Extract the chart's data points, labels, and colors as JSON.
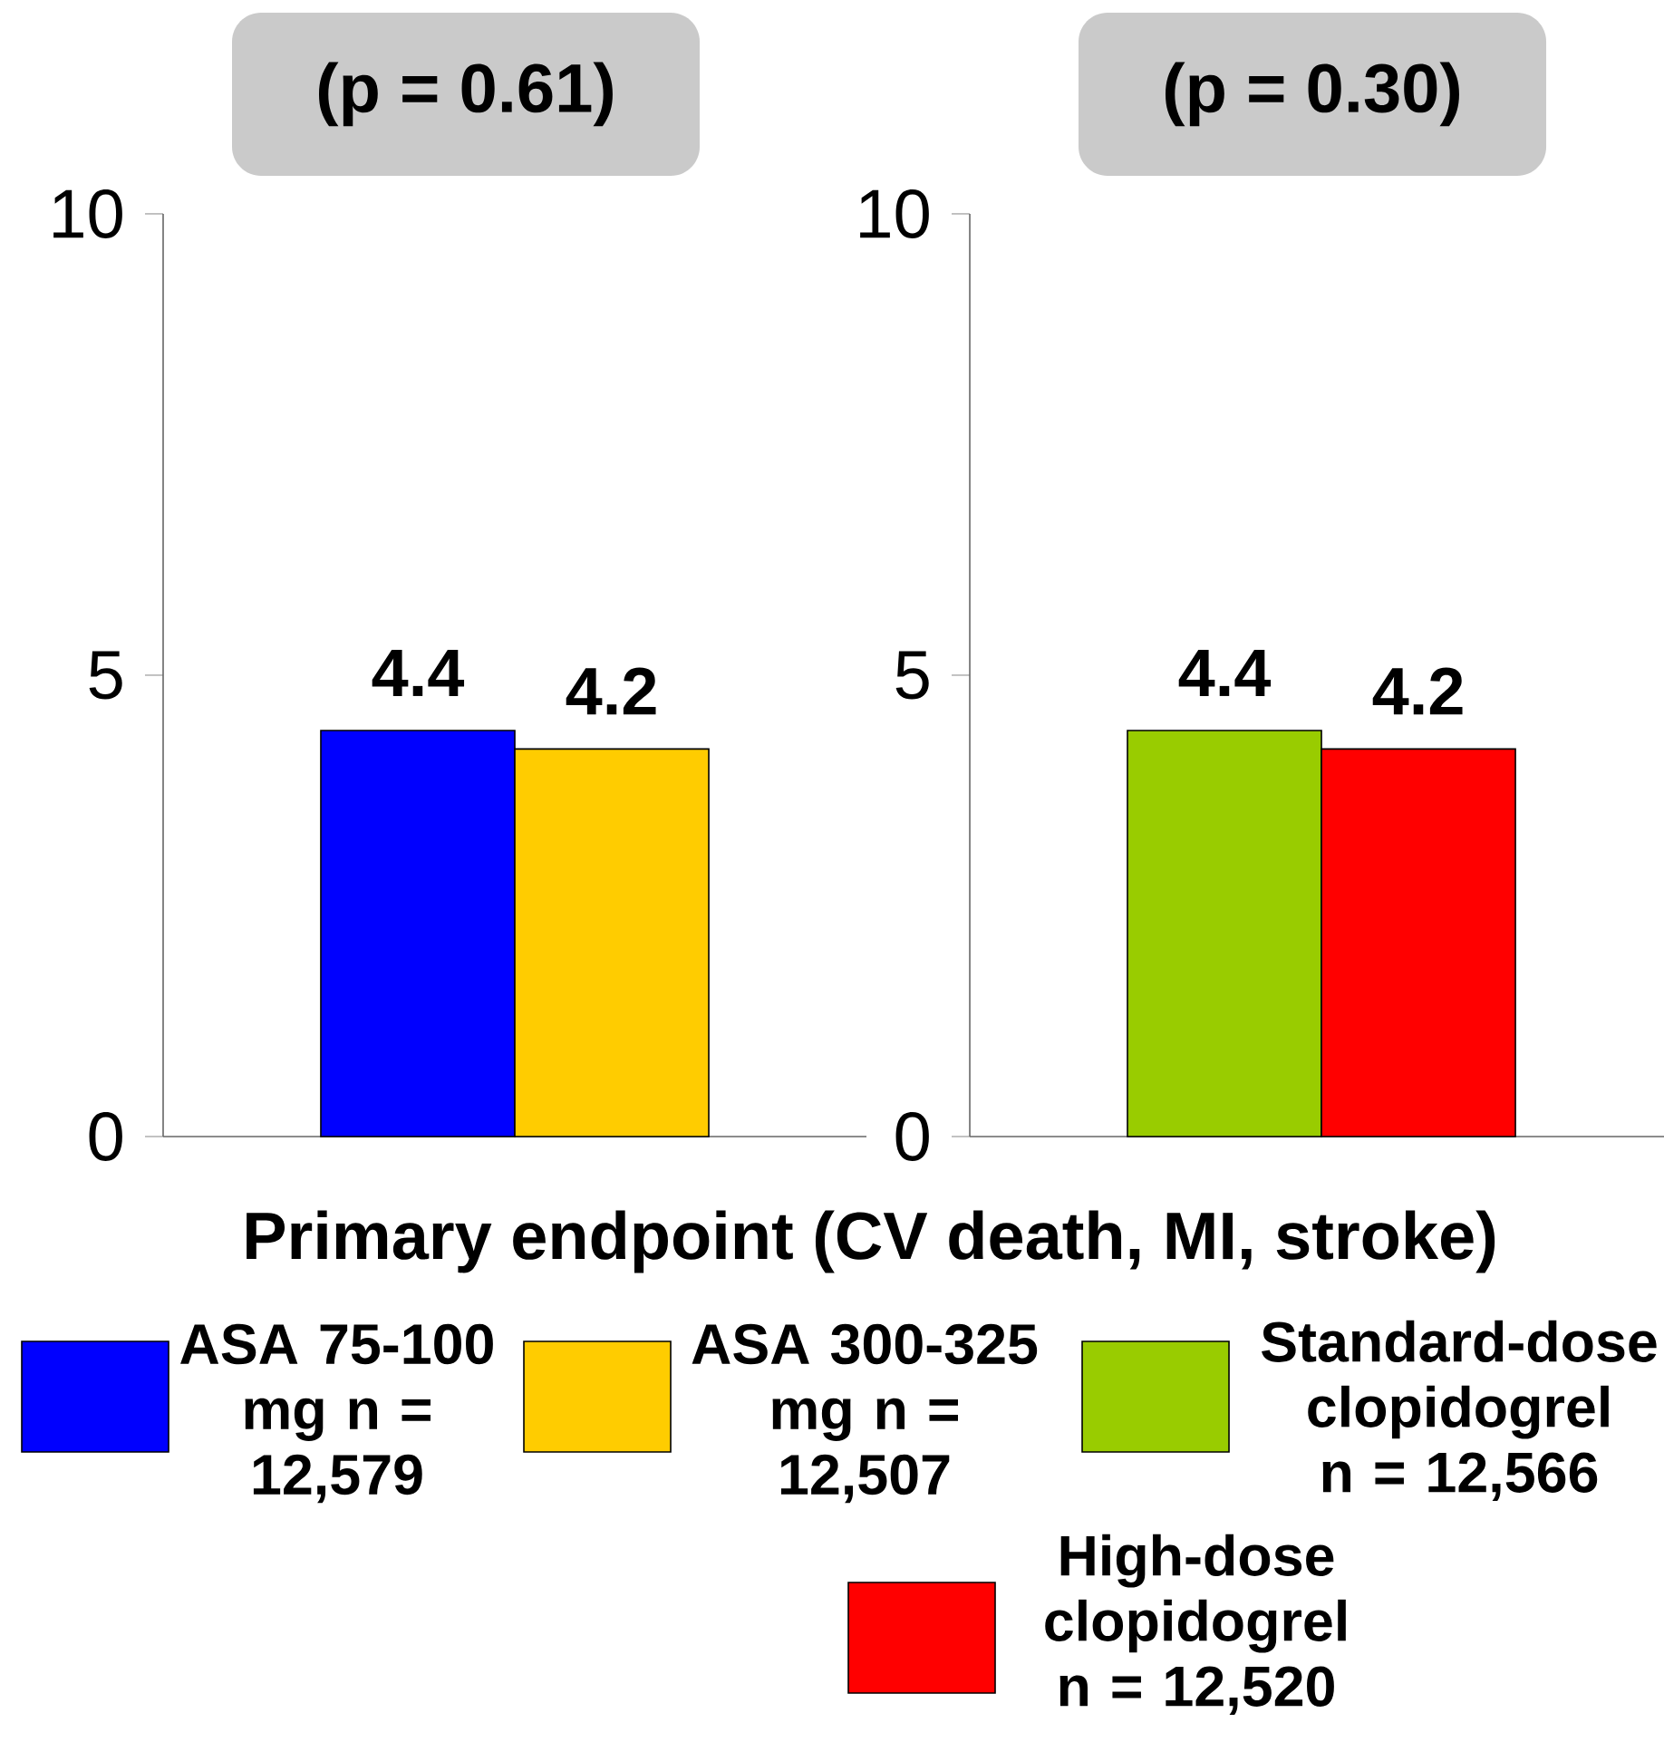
{
  "chart_data": [
    {
      "type": "bar",
      "title": "(p = 0.61)",
      "xlabel": "Primary endpoint (CV death, MI, stroke)",
      "categories": [
        null
      ],
      "series": [
        {
          "name": "ASA 75-100 mg n = 12,579",
          "color": "#0000ff",
          "values": [
            4.4
          ]
        },
        {
          "name": "ASA 300-325 mg n = 12,507",
          "color": "#ffcc00",
          "values": [
            4.2
          ]
        }
      ],
      "ylim": [
        0,
        10
      ],
      "yticks": [
        0,
        5,
        10
      ],
      "data_labels": true,
      "legend": "bottom"
    },
    {
      "type": "bar",
      "title": "(p = 0.30)",
      "categories": [
        null
      ],
      "series": [
        {
          "name": "Standard-dose clopidogrel n = 12,566",
          "color": "#99cc00",
          "values": [
            4.4
          ]
        },
        {
          "name": "High-dose clopidogrel n = 12,520",
          "color": "#ff0000",
          "values": [
            4.2
          ]
        }
      ],
      "ylim": [
        0,
        10
      ],
      "yticks": [
        0,
        5,
        10
      ],
      "data_labels": true,
      "legend": "bottom"
    }
  ]
}
